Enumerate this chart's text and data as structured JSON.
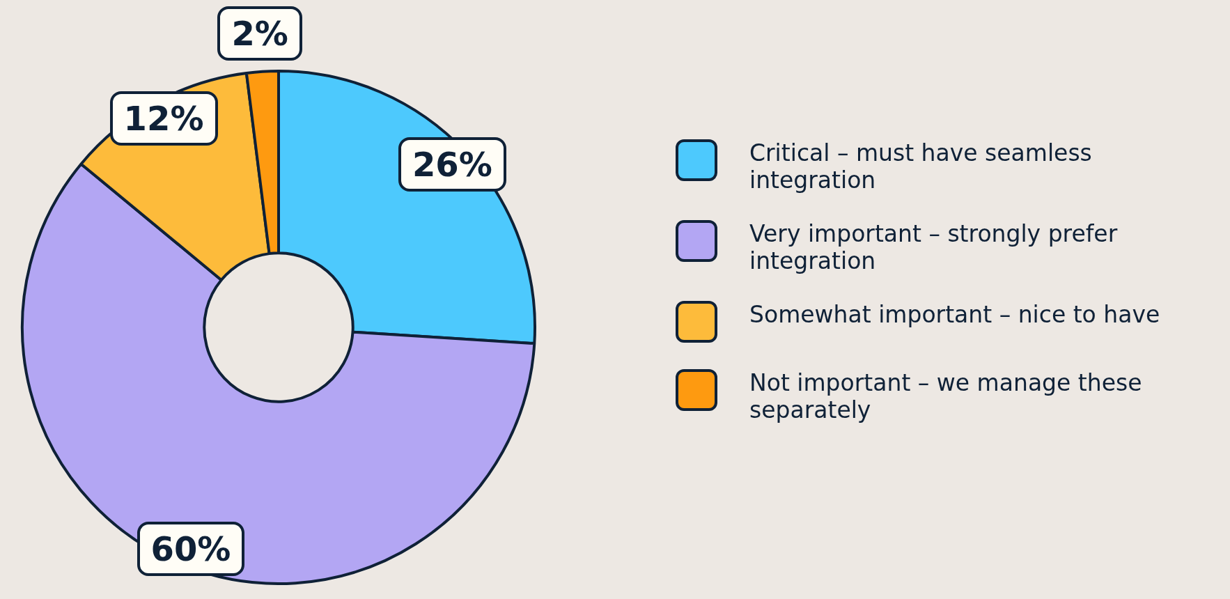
{
  "chart_data": {
    "type": "donut",
    "categories": [
      "Critical – must have seamless integration",
      "Very important – strongly prefer integration",
      "Somewhat important – nice to have",
      "Not important – we manage these separately"
    ],
    "values": [
      26,
      60,
      12,
      2
    ],
    "colors": [
      "#4dc9fd",
      "#b3a6f3",
      "#fdbb3b",
      "#fe9a10"
    ],
    "value_labels": [
      "26%",
      "60%",
      "12%",
      "2%"
    ],
    "legend": "right"
  }
}
